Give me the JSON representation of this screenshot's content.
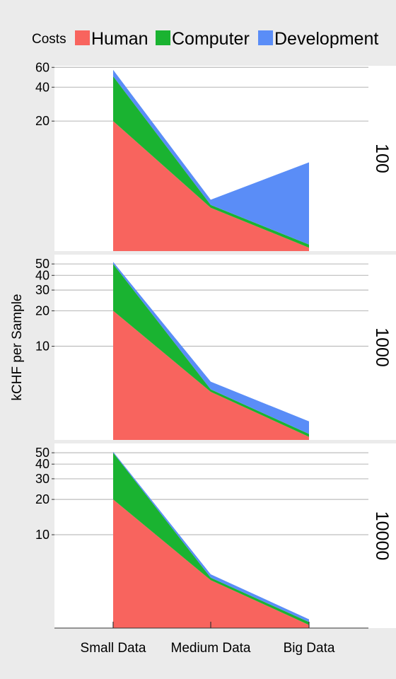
{
  "chart_data": {
    "type": "area",
    "stacked": true,
    "y_scale": "log",
    "ylabel": "kCHF per Sample",
    "xlabel": "",
    "categories": [
      "Small Data",
      "Medium Data",
      "Big Data"
    ],
    "legend": {
      "title": "Costs",
      "placement": "top"
    },
    "series_colors": {
      "Human": "#f8645e",
      "Computer": "#1ab331",
      "Development": "#5a8df7"
    },
    "panels": [
      {
        "label": "100",
        "yticks": [
          20,
          40,
          60
        ],
        "ylim": [
          1.4,
          62
        ],
        "series": [
          {
            "name": "Human",
            "values": [
              20,
              3.4,
              1.5
            ]
          },
          {
            "name": "Computer",
            "values": [
              30,
              0.2,
              0.1
            ]
          },
          {
            "name": "Development",
            "values": [
              7,
              0.4,
              7
            ]
          }
        ]
      },
      {
        "label": "1000",
        "yticks": [
          10,
          20,
          30,
          40,
          50
        ],
        "ylim": [
          1.6,
          60
        ],
        "series": [
          {
            "name": "Human",
            "values": [
              20,
              4.1,
              1.7
            ]
          },
          {
            "name": "Computer",
            "values": [
              30,
              0.2,
              0.1
            ]
          },
          {
            "name": "Development",
            "values": [
              2,
              0.7,
              0.5
            ]
          }
        ]
      },
      {
        "label": "10000",
        "yticks": [
          10,
          20,
          30,
          40,
          50
        ],
        "ylim": [
          1.6,
          60
        ],
        "series": [
          {
            "name": "Human",
            "values": [
              20,
              4.1,
              1.7
            ]
          },
          {
            "name": "Computer",
            "values": [
              30,
              0.2,
              0.1
            ]
          },
          {
            "name": "Development",
            "values": [
              1,
              0.3,
              0.1
            ]
          }
        ]
      }
    ]
  }
}
